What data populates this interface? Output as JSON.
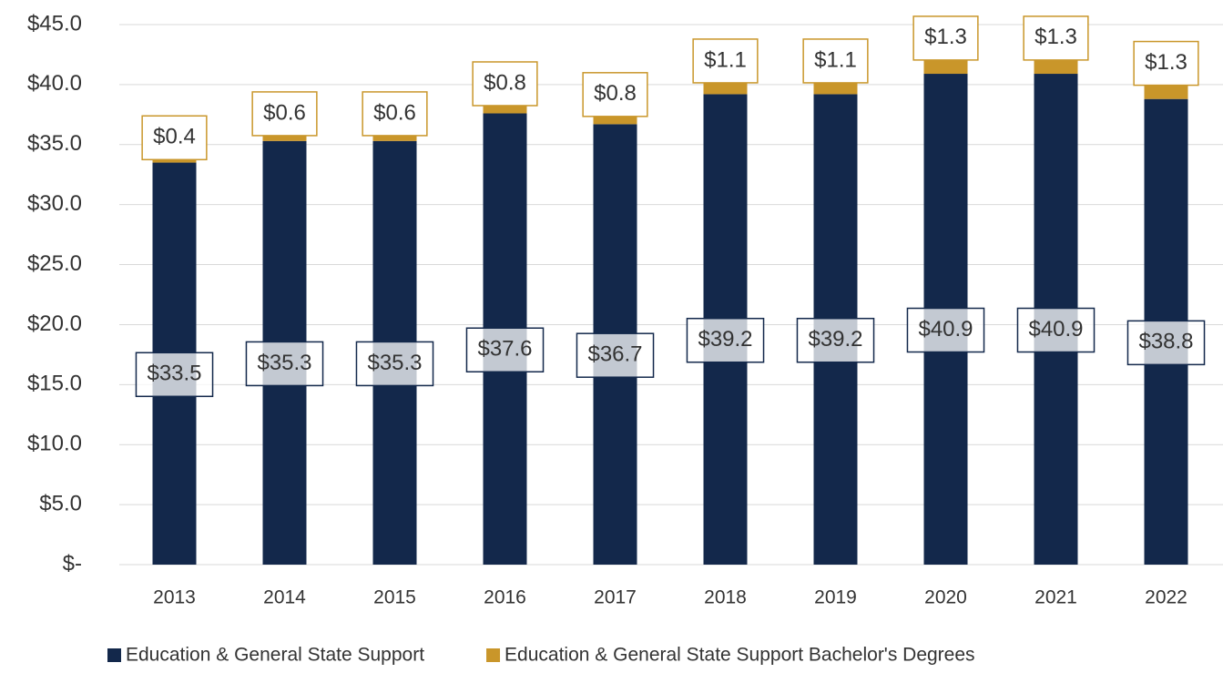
{
  "chart_data": {
    "type": "stacked_bar",
    "categories": [
      "2013",
      "2014",
      "2015",
      "2016",
      "2017",
      "2018",
      "2019",
      "2020",
      "2021",
      "2022"
    ],
    "series": [
      {
        "name": "Education & General State Support",
        "color": "#13284b",
        "values": [
          33.5,
          35.3,
          35.3,
          37.6,
          36.7,
          39.2,
          39.2,
          40.9,
          40.9,
          38.8
        ],
        "value_labels": [
          "$33.5",
          "$35.3",
          "$35.3",
          "$37.6",
          "$36.7",
          "$39.2",
          "$39.2",
          "$40.9",
          "$40.9",
          "$38.8"
        ]
      },
      {
        "name": "Education & General State Support Bachelor's Degrees",
        "color": "#c9962a",
        "values": [
          0.4,
          0.6,
          0.6,
          0.8,
          0.8,
          1.1,
          1.1,
          1.3,
          1.3,
          1.3
        ],
        "value_labels": [
          "$0.4",
          "$0.6",
          "$0.6",
          "$0.8",
          "$0.8",
          "$1.1",
          "$1.1",
          "$1.3",
          "$1.3",
          "$1.3"
        ]
      }
    ],
    "ylim": [
      0,
      45
    ],
    "yticks": [
      {
        "value": 0,
        "label": "$-"
      },
      {
        "value": 5,
        "label": "$5.0"
      },
      {
        "value": 10,
        "label": "$10.0"
      },
      {
        "value": 15,
        "label": "$15.0"
      },
      {
        "value": 20,
        "label": "$20.0"
      },
      {
        "value": 25,
        "label": "$25.0"
      },
      {
        "value": 30,
        "label": "$30.0"
      },
      {
        "value": 35,
        "label": "$35.0"
      },
      {
        "value": 40,
        "label": "$40.0"
      },
      {
        "value": 45,
        "label": "$45.0"
      }
    ],
    "grid": true,
    "legend": "bottom"
  }
}
